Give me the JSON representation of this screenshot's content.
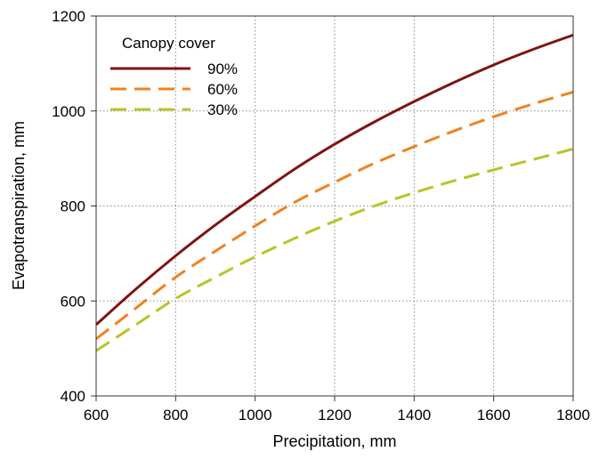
{
  "chart_data": {
    "type": "line",
    "xlabel": "Precipitation, mm",
    "ylabel": "Evapotranspiration, mm",
    "xlim": [
      600,
      1800
    ],
    "ylim": [
      400,
      1200
    ],
    "x_ticks": [
      "600",
      "800",
      "1000",
      "1200",
      "1400",
      "1600",
      "1800"
    ],
    "y_ticks": [
      "400",
      "600",
      "800",
      "1000",
      "1200"
    ],
    "grid": "dotted",
    "legend": {
      "title": "Canopy cover",
      "placement": "top-left"
    },
    "x": [
      600,
      700,
      800,
      900,
      1000,
      1100,
      1200,
      1300,
      1400,
      1500,
      1600,
      1700,
      1800
    ],
    "series": [
      {
        "name": "90%",
        "color": "#7f1414",
        "style": "solid",
        "values": [
          550,
          625,
          695,
          760,
          820,
          878,
          930,
          977,
          1020,
          1060,
          1097,
          1130,
          1160
        ]
      },
      {
        "name": "60%",
        "color": "#f0821e",
        "style": "dashed",
        "values": [
          520,
          585,
          650,
          705,
          758,
          808,
          850,
          890,
          925,
          958,
          988,
          1015,
          1040
        ]
      },
      {
        "name": "30%",
        "color": "#b8c428",
        "style": "dashed",
        "values": [
          495,
          550,
          605,
          650,
          693,
          732,
          768,
          800,
          828,
          853,
          876,
          898,
          920
        ]
      }
    ]
  }
}
